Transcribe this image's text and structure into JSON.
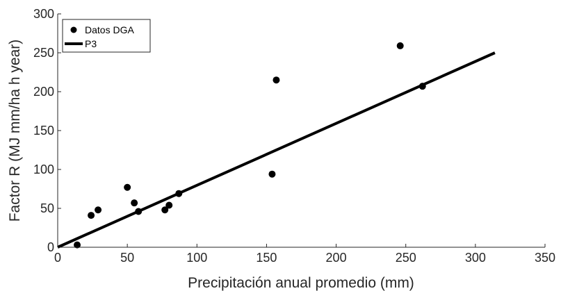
{
  "chart_data": {
    "type": "scatter",
    "title": "",
    "xlabel": "Precipitación anual promedio (mm)",
    "ylabel": "Factor R (MJ mm/ha h year)",
    "xlim": [
      0,
      350
    ],
    "ylim": [
      0,
      300
    ],
    "xticks": [
      "0",
      "50",
      "100",
      "150",
      "200",
      "250",
      "300",
      "350"
    ],
    "yticks": [
      "0",
      "50",
      "100",
      "150",
      "200",
      "250",
      "300"
    ],
    "grid": false,
    "legend_position": "top-left",
    "series": [
      {
        "name": "Datos DGA",
        "kind": "scatter",
        "color": "#000000",
        "points": [
          [
            14,
            3
          ],
          [
            24,
            41
          ],
          [
            29,
            48
          ],
          [
            50,
            77
          ],
          [
            55,
            57
          ],
          [
            58,
            46
          ],
          [
            77,
            48
          ],
          [
            80,
            54
          ],
          [
            87,
            69
          ],
          [
            154,
            94
          ],
          [
            157,
            215
          ],
          [
            246,
            259
          ],
          [
            262,
            207
          ]
        ]
      },
      {
        "name": "P3",
        "kind": "line",
        "color": "#000000",
        "points": [
          [
            0,
            0
          ],
          [
            314,
            250
          ]
        ]
      }
    ]
  }
}
